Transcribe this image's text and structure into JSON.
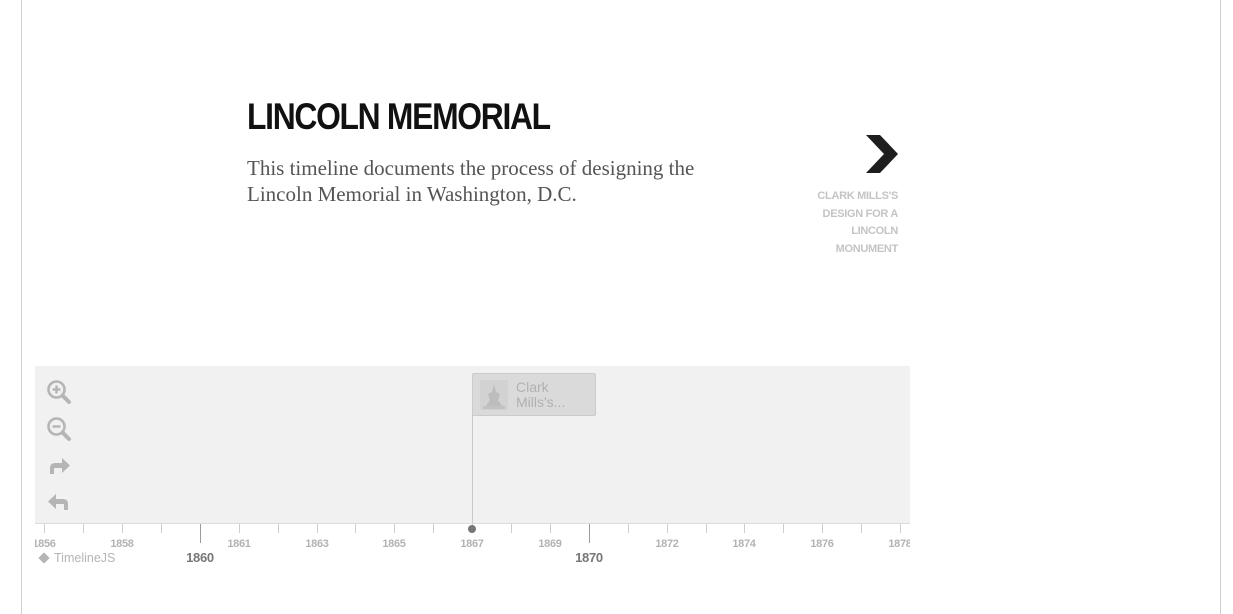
{
  "slide": {
    "title": "LINCOLN MEMORIAL",
    "description": "This timeline documents the process of designing the Lincoln Memorial in Washington, D.C."
  },
  "nav_next": {
    "label": "CLARK MILLS'S DESIGN FOR A LINCOLN MONUMENT",
    "icon": "chevron-right-icon"
  },
  "toolbar": {
    "zoom_in_icon": "zoom-in-icon",
    "zoom_out_icon": "zoom-out-icon",
    "forward_icon": "redo-icon",
    "back_icon": "undo-icon"
  },
  "event_marker": {
    "text": "Clark Mills's...",
    "year": "1867"
  },
  "axis": {
    "minor_labels": [
      "1856",
      "1858",
      "1861",
      "1863",
      "1865",
      "1867",
      "1869",
      "1872",
      "1874",
      "1876",
      "1878"
    ],
    "major_labels": [
      "1860",
      "1870"
    ]
  },
  "credit": {
    "label": "TimelineJS"
  },
  "colors": {
    "timenav_bg": "#f1f1f1",
    "title": "#111111",
    "description": "#555555",
    "faded_label": "#c4c4c4"
  }
}
